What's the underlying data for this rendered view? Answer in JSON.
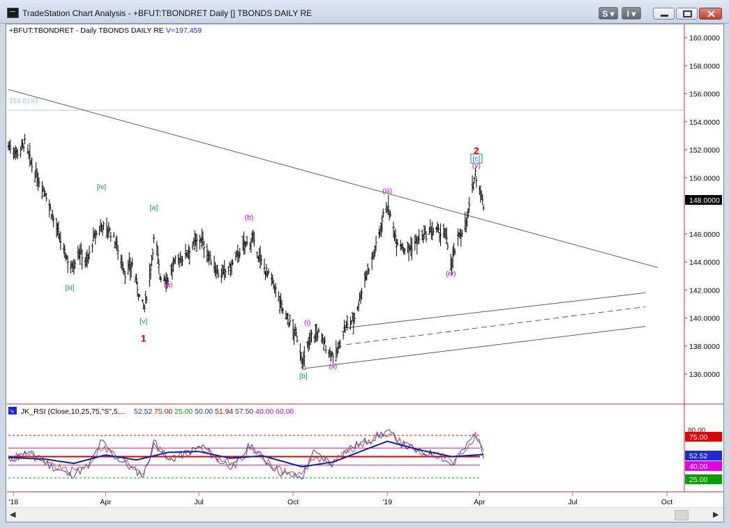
{
  "window": {
    "title": "TradeStation Chart Analysis - +BFUT:TBONDRET Daily [] TBONDS DAILY RE",
    "s_button": "S",
    "i_button": "I"
  },
  "price_panel": {
    "header_symbol": "+BFUT:TBONDRET - Daily  TBONDS DAILY RE",
    "header_volume": "V=197,459",
    "hline_label": "154.8193",
    "last_price": "148.0000",
    "axis_labels": [
      "160.0000",
      "158.0000",
      "156.0000",
      "154.0000",
      "152.0000",
      "150.0000",
      "146.0000",
      "144.0000",
      "142.0000",
      "140.0000",
      "138.0000",
      "136.0000"
    ]
  },
  "rsi_panel": {
    "header": "JK_RSI (Close,10,25,75,\"S\",5,...",
    "values": [
      "52.52",
      "75.00",
      "25.00",
      "50.00",
      "51.94",
      "57.50",
      "40.00",
      "60.00"
    ],
    "badges": [
      {
        "text": "75.00",
        "bg": "#e00000",
        "fg": "#ffffff"
      },
      {
        "text": "52.52",
        "bg": "#1e2ad0",
        "fg": "#ffffff"
      },
      {
        "text": "40.00",
        "bg": "#e000e0",
        "fg": "#ffffff"
      },
      {
        "text": "25.00",
        "bg": "#00a000",
        "fg": "#ffffff"
      }
    ],
    "axis_80": "80.00"
  },
  "wave_labels": [
    {
      "text": "[iv]",
      "date": "2018-03-28",
      "price": 149.2,
      "color": "#138a8a"
    },
    {
      "text": "[a]",
      "date": "2018-05-18",
      "price": 147.7,
      "color": "#138a8a"
    },
    {
      "text": "(b)",
      "date": "2018-08-19",
      "price": 147.0,
      "color": "#d400d4"
    },
    {
      "text": "[iii]",
      "date": "2018-02-25",
      "price": 142.0,
      "color": "#138a8a"
    },
    {
      "text": "(a)",
      "date": "2018-06-01",
      "price": 142.2,
      "color": "#d400d4"
    },
    {
      "text": "[v]",
      "date": "2018-05-08",
      "price": 139.6,
      "color": "#138a8a"
    },
    {
      "text": "1",
      "date": "2018-05-08",
      "price": 138.3,
      "color": "#e00000"
    },
    {
      "text": "(iii)",
      "date": "2019-01-01",
      "price": 148.9,
      "color": "#d400d4"
    },
    {
      "text": "(i)",
      "date": "2018-10-15",
      "price": 139.5,
      "color": "#d400d4"
    },
    {
      "text": "c",
      "date": "2018-10-12",
      "price": 136.3,
      "color": "#d400d4"
    },
    {
      "text": "[b]",
      "date": "2018-10-11",
      "price": 135.7,
      "color": "#138a8a"
    },
    {
      "text": "(ii)",
      "date": "2018-11-09",
      "price": 136.4,
      "color": "#d400d4"
    },
    {
      "text": "(iv)",
      "date": "2019-03-04",
      "price": 143.0,
      "color": "#d400d4"
    },
    {
      "text": "(v)",
      "date": "2019-03-29",
      "price": 150.7,
      "color": "#d400d4"
    },
    {
      "text": "[c]",
      "date": "2019-03-29",
      "price": 151.2,
      "color": "#138a8a"
    },
    {
      "text": "2",
      "date": "2019-03-29",
      "price": 151.7,
      "color": "#e00000"
    }
  ],
  "chart_data": [
    {
      "type": "candlestick",
      "title": "+BFUT:TBONDRET - Daily  TBONDS DAILY RE",
      "ylim": [
        134.6,
        162.0
      ],
      "x_range": [
        "2017-12-27",
        "2019-10-16"
      ],
      "x_ticks": [
        {
          "label": "'18",
          "date": "2018-01-01"
        },
        {
          "label": "Apr",
          "date": "2018-04-01"
        },
        {
          "label": "Jul",
          "date": "2018-07-01"
        },
        {
          "label": "Oct",
          "date": "2018-10-01"
        },
        {
          "label": "'19",
          "date": "2019-01-01"
        },
        {
          "label": "Apr",
          "date": "2019-04-01"
        },
        {
          "label": "Jul",
          "date": "2019-07-01"
        },
        {
          "label": "Oct",
          "date": "2019-10-01"
        }
      ],
      "close_path": [
        [
          "2017-12-27",
          152.3
        ],
        [
          "2018-01-05",
          151.8
        ],
        [
          "2018-01-12",
          152.5
        ],
        [
          "2018-01-20",
          150.6
        ],
        [
          "2018-02-01",
          149.0
        ],
        [
          "2018-02-10",
          146.8
        ],
        [
          "2018-02-20",
          144.6
        ],
        [
          "2018-02-27",
          143.6
        ],
        [
          "2018-03-06",
          144.8
        ],
        [
          "2018-03-14",
          144.0
        ],
        [
          "2018-03-20",
          145.6
        ],
        [
          "2018-03-28",
          146.6
        ],
        [
          "2018-04-05",
          146.2
        ],
        [
          "2018-04-12",
          145.2
        ],
        [
          "2018-04-20",
          143.2
        ],
        [
          "2018-04-27",
          143.8
        ],
        [
          "2018-05-05",
          141.2
        ],
        [
          "2018-05-09",
          140.7
        ],
        [
          "2018-05-14",
          143.0
        ],
        [
          "2018-05-19",
          146.2
        ],
        [
          "2018-05-24",
          143.0
        ],
        [
          "2018-06-01",
          142.8
        ],
        [
          "2018-06-08",
          144.0
        ],
        [
          "2018-06-15",
          144.3
        ],
        [
          "2018-06-25",
          145.2
        ],
        [
          "2018-07-03",
          145.7
        ],
        [
          "2018-07-12",
          144.2
        ],
        [
          "2018-07-22",
          143.0
        ],
        [
          "2018-08-01",
          143.6
        ],
        [
          "2018-08-12",
          145.0
        ],
        [
          "2018-08-22",
          145.6
        ],
        [
          "2018-09-01",
          143.8
        ],
        [
          "2018-09-12",
          142.4
        ],
        [
          "2018-09-22",
          140.4
        ],
        [
          "2018-10-05",
          138.6
        ],
        [
          "2018-10-11",
          136.8
        ],
        [
          "2018-10-18",
          138.7
        ],
        [
          "2018-10-26",
          138.9
        ],
        [
          "2018-11-05",
          137.6
        ],
        [
          "2018-11-12",
          137.3
        ],
        [
          "2018-11-20",
          139.2
        ],
        [
          "2018-11-30",
          140.0
        ],
        [
          "2018-12-10",
          142.8
        ],
        [
          "2018-12-20",
          144.8
        ],
        [
          "2018-12-31",
          148.2
        ],
        [
          "2019-01-10",
          145.6
        ],
        [
          "2019-01-20",
          144.8
        ],
        [
          "2019-02-01",
          145.6
        ],
        [
          "2019-02-14",
          146.2
        ],
        [
          "2019-02-26",
          146.0
        ],
        [
          "2019-03-05",
          144.0
        ],
        [
          "2019-03-12",
          145.8
        ],
        [
          "2019-03-20",
          147.0
        ],
        [
          "2019-03-28",
          150.4
        ],
        [
          "2019-04-05",
          148.0
        ]
      ],
      "trendlines": [
        {
          "style": "solid",
          "from": [
            "2017-12-27",
            156.3
          ],
          "to": [
            "2019-09-22",
            143.6
          ]
        },
        {
          "style": "solid",
          "from": [
            "2018-11-22",
            139.3
          ],
          "to": [
            "2019-09-10",
            141.8
          ]
        },
        {
          "style": "dashed",
          "from": [
            "2018-11-22",
            138.1
          ],
          "to": [
            "2019-09-10",
            140.8
          ]
        },
        {
          "style": "solid",
          "from": [
            "2018-10-12",
            136.4
          ],
          "to": [
            "2019-09-10",
            139.4
          ]
        }
      ],
      "hline": 154.8193
    },
    {
      "type": "line",
      "title": "JK_RSI (Close,10,25,75,\"S\",5,...",
      "ylim": [
        5,
        90
      ],
      "levels": [
        {
          "value": 75,
          "color": "#e00000",
          "style": "dashed"
        },
        {
          "value": 60,
          "color": "#e000e0",
          "style": "solid"
        },
        {
          "value": 50,
          "color": "#e00000",
          "style": "solid"
        },
        {
          "value": 40,
          "color": "#e000e0",
          "style": "solid"
        },
        {
          "value": 25,
          "color": "#00a000",
          "style": "dashed"
        }
      ],
      "series": [
        {
          "color": "#1e2ad0",
          "values": [
            [
              "2017-12-27",
              45
            ],
            [
              "2018-01-15",
              55
            ],
            [
              "2018-02-05",
              40
            ],
            [
              "2018-02-25",
              28
            ],
            [
              "2018-03-15",
              38
            ],
            [
              "2018-03-28",
              68
            ],
            [
              "2018-04-10",
              50
            ],
            [
              "2018-04-28",
              35
            ],
            [
              "2018-05-08",
              28
            ],
            [
              "2018-05-19",
              70
            ],
            [
              "2018-06-01",
              45
            ],
            [
              "2018-06-20",
              55
            ],
            [
              "2018-07-05",
              62
            ],
            [
              "2018-07-20",
              45
            ],
            [
              "2018-08-05",
              38
            ],
            [
              "2018-08-20",
              64
            ],
            [
              "2018-09-05",
              44
            ],
            [
              "2018-09-20",
              30
            ],
            [
              "2018-10-10",
              25
            ],
            [
              "2018-10-20",
              55
            ],
            [
              "2018-11-08",
              42
            ],
            [
              "2018-11-25",
              60
            ],
            [
              "2018-12-15",
              70
            ],
            [
              "2019-01-01",
              80
            ],
            [
              "2019-01-15",
              65
            ],
            [
              "2019-02-01",
              55
            ],
            [
              "2019-02-20",
              52
            ],
            [
              "2019-03-05",
              40
            ],
            [
              "2019-03-15",
              55
            ],
            [
              "2019-03-28",
              78
            ],
            [
              "2019-04-05",
              52.5
            ]
          ]
        },
        {
          "color": "#d03030",
          "values": [
            [
              "2017-12-27",
              48
            ],
            [
              "2018-01-15",
              52
            ],
            [
              "2018-02-05",
              42
            ],
            [
              "2018-02-25",
              32
            ],
            [
              "2018-03-15",
              40
            ],
            [
              "2018-03-28",
              62
            ],
            [
              "2018-04-10",
              52
            ],
            [
              "2018-04-28",
              38
            ],
            [
              "2018-05-08",
              32
            ],
            [
              "2018-05-19",
              64
            ],
            [
              "2018-06-01",
              48
            ],
            [
              "2018-06-20",
              54
            ],
            [
              "2018-07-05",
              60
            ],
            [
              "2018-07-20",
              47
            ],
            [
              "2018-08-05",
              40
            ],
            [
              "2018-08-20",
              60
            ],
            [
              "2018-09-05",
              46
            ],
            [
              "2018-09-20",
              33
            ],
            [
              "2018-10-10",
              28
            ],
            [
              "2018-10-20",
              50
            ],
            [
              "2018-11-08",
              44
            ],
            [
              "2018-11-25",
              58
            ],
            [
              "2018-12-15",
              68
            ],
            [
              "2019-01-01",
              78
            ],
            [
              "2019-01-15",
              66
            ],
            [
              "2019-02-01",
              56
            ],
            [
              "2019-02-20",
              53
            ],
            [
              "2019-03-05",
              43
            ],
            [
              "2019-03-15",
              53
            ],
            [
              "2019-03-28",
              74
            ],
            [
              "2019-04-05",
              51.9
            ]
          ]
        },
        {
          "color": "#1020a0",
          "values": [
            [
              "2017-12-27",
              49
            ],
            [
              "2018-02-01",
              47
            ],
            [
              "2018-03-01",
              42
            ],
            [
              "2018-04-01",
              52
            ],
            [
              "2018-05-01",
              46
            ],
            [
              "2018-06-01",
              55
            ],
            [
              "2018-07-01",
              56
            ],
            [
              "2018-08-01",
              48
            ],
            [
              "2018-09-01",
              51
            ],
            [
              "2018-10-10",
              38
            ],
            [
              "2018-11-10",
              44
            ],
            [
              "2018-12-10",
              58
            ],
            [
              "2019-01-01",
              68
            ],
            [
              "2019-02-01",
              58
            ],
            [
              "2019-03-05",
              50
            ],
            [
              "2019-04-05",
              52.5
            ]
          ]
        }
      ]
    }
  ]
}
